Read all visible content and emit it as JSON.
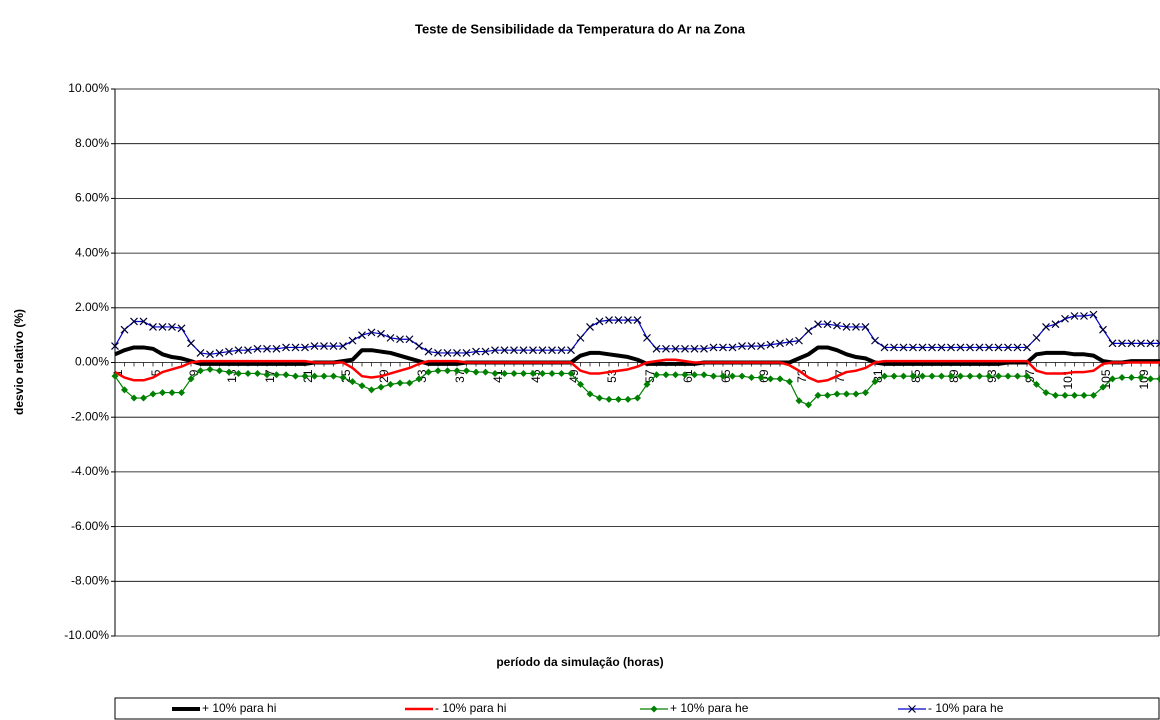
{
  "chart_data": {
    "type": "line",
    "title": "Teste de Sensibilidade da Temperatura do Ar na Zona",
    "x_label": "período da simulação (horas)",
    "y_label": "desvio relativo (%)",
    "categories": [
      "1",
      null,
      null,
      null,
      "5",
      null,
      null,
      null,
      "9",
      null,
      null,
      null,
      "13",
      null,
      null,
      null,
      "17",
      null,
      null,
      null,
      "21",
      null,
      null,
      null,
      "25",
      null,
      null,
      null,
      "29",
      null,
      null,
      null,
      "33",
      null,
      null,
      null,
      "37",
      null,
      null,
      null,
      "41",
      null,
      null,
      null,
      "45",
      null,
      null,
      null,
      "49",
      null,
      null,
      null,
      "53",
      null,
      null,
      null,
      "57",
      null,
      null,
      null,
      "61",
      null,
      null,
      null,
      "65",
      null,
      null,
      null,
      "69",
      null,
      null,
      null,
      "73",
      null,
      null,
      null,
      "77",
      null,
      null,
      null,
      "81",
      null,
      null,
      null,
      "85",
      null,
      null,
      null,
      "89",
      null,
      null,
      null,
      "93",
      null,
      null,
      null,
      "97",
      null,
      null,
      null,
      "101",
      null,
      null,
      null,
      "105",
      null,
      null,
      null,
      "109",
      null,
      null
    ],
    "ylim": [
      -10,
      10
    ],
    "yticks": [
      {
        "value": -10,
        "label": "-10.00%"
      },
      {
        "value": -8,
        "label": "-8.00%"
      },
      {
        "value": -6,
        "label": "-6.00%"
      },
      {
        "value": -4,
        "label": "-4.00%"
      },
      {
        "value": -2,
        "label": "-2.00%"
      },
      {
        "value": 0,
        "label": "0.00%"
      },
      {
        "value": 2,
        "label": "2.00%"
      },
      {
        "value": 4,
        "label": "4.00%"
      },
      {
        "value": 6,
        "label": "6.00%"
      },
      {
        "value": 8,
        "label": "8.00%"
      },
      {
        "value": 10,
        "label": "10.00%"
      }
    ],
    "grid": true,
    "legend": "bottom",
    "series": [
      {
        "name": "+ 10% para hi",
        "color": "#000000",
        "marker": "none",
        "values": [
          0.3,
          0.45,
          0.55,
          0.55,
          0.5,
          0.3,
          0.2,
          0.15,
          0.05,
          -0.05,
          -0.05,
          -0.05,
          -0.05,
          -0.05,
          -0.05,
          -0.05,
          -0.05,
          -0.05,
          -0.05,
          -0.05,
          -0.05,
          0,
          0,
          0,
          0.05,
          0.1,
          0.45,
          0.45,
          0.4,
          0.35,
          0.25,
          0.15,
          0.05,
          -0.05,
          -0.05,
          -0.05,
          -0.05,
          0,
          0,
          0,
          0,
          0,
          0,
          0,
          0,
          0,
          0,
          0,
          0,
          0.25,
          0.35,
          0.35,
          0.3,
          0.25,
          0.2,
          0.1,
          -0.05,
          -0.05,
          -0.05,
          -0.05,
          -0.05,
          -0.05,
          0,
          0,
          0,
          0,
          0,
          0,
          0,
          0,
          0,
          0,
          0.15,
          0.3,
          0.55,
          0.55,
          0.45,
          0.3,
          0.2,
          0.15,
          0,
          -0.05,
          -0.05,
          -0.05,
          -0.05,
          -0.05,
          -0.05,
          -0.05,
          -0.05,
          -0.05,
          -0.05,
          -0.05,
          -0.05,
          -0.05,
          0,
          0,
          0,
          0.3,
          0.35,
          0.35,
          0.35,
          0.3,
          0.3,
          0.25,
          0.05,
          0,
          0,
          0.05,
          0.05,
          0.05,
          0.05
        ]
      },
      {
        "name": "- 10% para hi",
        "color": "#ff0000",
        "marker": "none",
        "values": [
          -0.35,
          -0.55,
          -0.65,
          -0.65,
          -0.55,
          -0.35,
          -0.25,
          -0.15,
          0,
          0.05,
          0.05,
          0.05,
          0.05,
          0.05,
          0.05,
          0.05,
          0.05,
          0.05,
          0.05,
          0.05,
          0.05,
          0,
          0,
          0,
          0,
          -0.2,
          -0.5,
          -0.55,
          -0.5,
          -0.4,
          -0.3,
          -0.2,
          -0.05,
          0.05,
          0.05,
          0.05,
          0.05,
          0,
          0,
          0,
          0,
          0,
          0,
          0,
          0,
          0,
          0,
          0,
          0,
          -0.3,
          -0.4,
          -0.4,
          -0.35,
          -0.3,
          -0.25,
          -0.15,
          0,
          0.05,
          0.1,
          0.1,
          0.05,
          0,
          0,
          0,
          0,
          0,
          0,
          0,
          0,
          0,
          0,
          -0.1,
          -0.3,
          -0.55,
          -0.7,
          -0.65,
          -0.5,
          -0.35,
          -0.3,
          -0.2,
          0,
          0.05,
          0.05,
          0.05,
          0.05,
          0.05,
          0.05,
          0.05,
          0.05,
          0.05,
          0.05,
          0.05,
          0.05,
          0.05,
          0.05,
          0.05,
          0.05,
          -0.3,
          -0.4,
          -0.4,
          -0.4,
          -0.35,
          -0.35,
          -0.3,
          -0.05,
          0,
          0,
          0,
          0,
          0,
          0
        ]
      },
      {
        "name": "+ 10% para he",
        "color": "#008000",
        "marker": "diamond",
        "values": [
          -0.5,
          -1.0,
          -1.3,
          -1.3,
          -1.15,
          -1.1,
          -1.1,
          -1.1,
          -0.6,
          -0.3,
          -0.25,
          -0.3,
          -0.35,
          -0.4,
          -0.4,
          -0.4,
          -0.45,
          -0.45,
          -0.45,
          -0.5,
          -0.5,
          -0.5,
          -0.5,
          -0.5,
          -0.55,
          -0.7,
          -0.85,
          -1.0,
          -0.9,
          -0.8,
          -0.75,
          -0.75,
          -0.6,
          -0.35,
          -0.3,
          -0.3,
          -0.3,
          -0.3,
          -0.35,
          -0.35,
          -0.4,
          -0.4,
          -0.4,
          -0.4,
          -0.4,
          -0.4,
          -0.4,
          -0.4,
          -0.4,
          -0.8,
          -1.15,
          -1.3,
          -1.35,
          -1.35,
          -1.35,
          -1.3,
          -0.8,
          -0.45,
          -0.45,
          -0.45,
          -0.45,
          -0.45,
          -0.45,
          -0.5,
          -0.5,
          -0.5,
          -0.5,
          -0.55,
          -0.55,
          -0.6,
          -0.6,
          -0.7,
          -1.4,
          -1.55,
          -1.2,
          -1.2,
          -1.15,
          -1.15,
          -1.15,
          -1.1,
          -0.7,
          -0.5,
          -0.5,
          -0.5,
          -0.5,
          -0.5,
          -0.5,
          -0.5,
          -0.5,
          -0.5,
          -0.5,
          -0.5,
          -0.5,
          -0.5,
          -0.5,
          -0.5,
          -0.5,
          -0.8,
          -1.1,
          -1.2,
          -1.2,
          -1.2,
          -1.2,
          -1.2,
          -0.9,
          -0.6,
          -0.55,
          -0.55,
          -0.55,
          -0.6,
          -0.6
        ]
      },
      {
        "name": "- 10% para he",
        "color": "#0000cc",
        "marker": "x",
        "values": [
          0.6,
          1.2,
          1.5,
          1.5,
          1.3,
          1.3,
          1.3,
          1.25,
          0.7,
          0.35,
          0.3,
          0.35,
          0.4,
          0.45,
          0.45,
          0.5,
          0.5,
          0.5,
          0.55,
          0.55,
          0.55,
          0.6,
          0.6,
          0.6,
          0.6,
          0.8,
          1.0,
          1.1,
          1.05,
          0.9,
          0.85,
          0.85,
          0.6,
          0.4,
          0.35,
          0.35,
          0.35,
          0.35,
          0.4,
          0.4,
          0.45,
          0.45,
          0.45,
          0.45,
          0.45,
          0.45,
          0.45,
          0.45,
          0.45,
          0.9,
          1.3,
          1.5,
          1.55,
          1.55,
          1.55,
          1.55,
          0.9,
          0.5,
          0.5,
          0.5,
          0.5,
          0.5,
          0.5,
          0.55,
          0.55,
          0.55,
          0.6,
          0.6,
          0.6,
          0.65,
          0.7,
          0.75,
          0.8,
          1.15,
          1.4,
          1.4,
          1.35,
          1.3,
          1.3,
          1.3,
          0.8,
          0.55,
          0.55,
          0.55,
          0.55,
          0.55,
          0.55,
          0.55,
          0.55,
          0.55,
          0.55,
          0.55,
          0.55,
          0.55,
          0.55,
          0.55,
          0.55,
          0.9,
          1.3,
          1.4,
          1.6,
          1.7,
          1.7,
          1.75,
          1.2,
          0.7,
          0.7,
          0.7,
          0.7,
          0.7,
          0.7
        ]
      }
    ]
  }
}
